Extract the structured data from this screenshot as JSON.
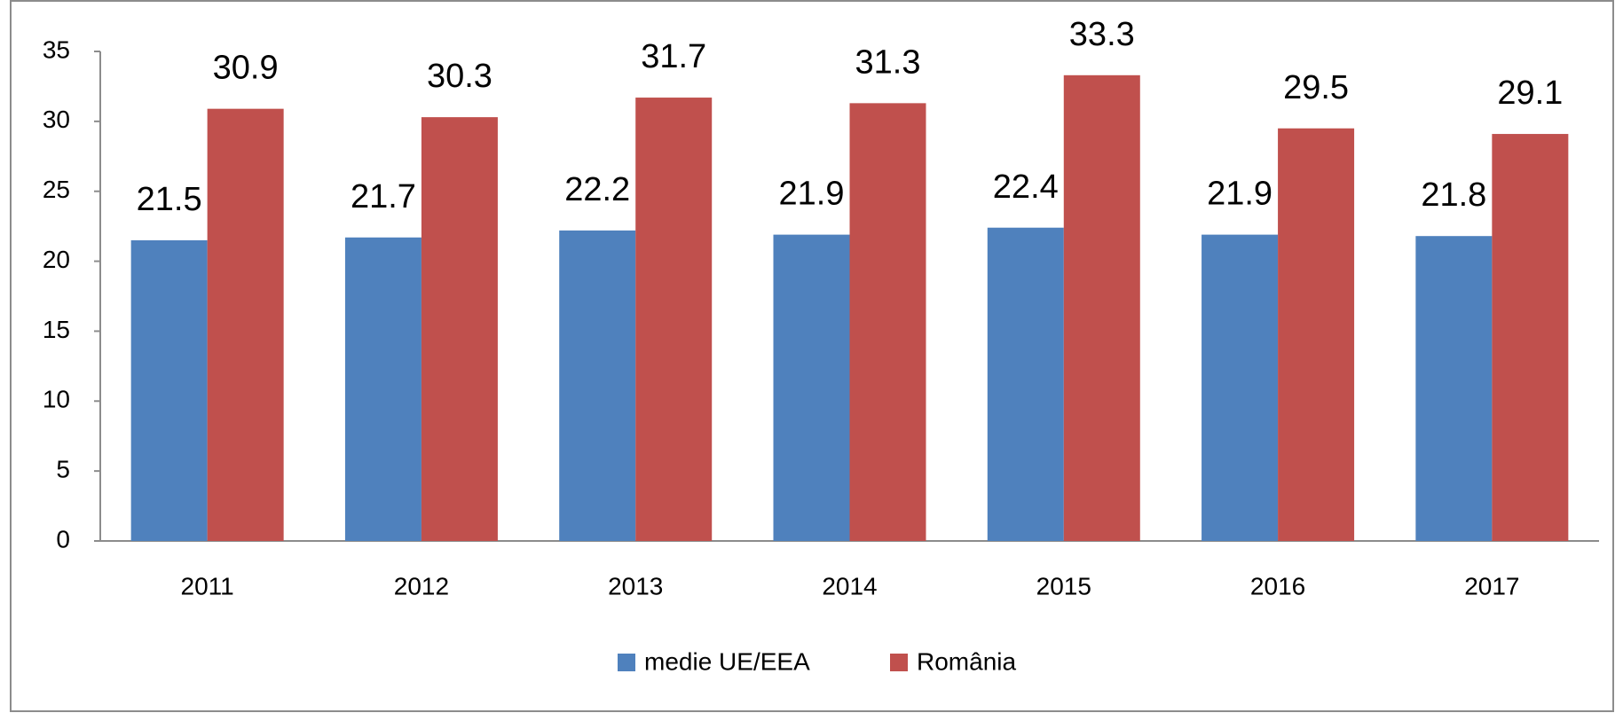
{
  "chart_data": {
    "type": "bar",
    "categories": [
      "2011",
      "2012",
      "2013",
      "2014",
      "2015",
      "2016",
      "2017"
    ],
    "series": [
      {
        "name": "medie UE/EEA",
        "color": "#4f81bd",
        "values": [
          21.5,
          21.7,
          22.2,
          21.9,
          22.4,
          21.9,
          21.8
        ]
      },
      {
        "name": "România",
        "color": "#c0504d",
        "values": [
          30.9,
          30.3,
          31.7,
          31.3,
          33.3,
          29.5,
          29.1
        ]
      }
    ],
    "ylim": [
      0,
      35
    ],
    "yticks": [
      0,
      5,
      10,
      15,
      20,
      25,
      30,
      35
    ],
    "grid": false,
    "legend": "bottom"
  }
}
